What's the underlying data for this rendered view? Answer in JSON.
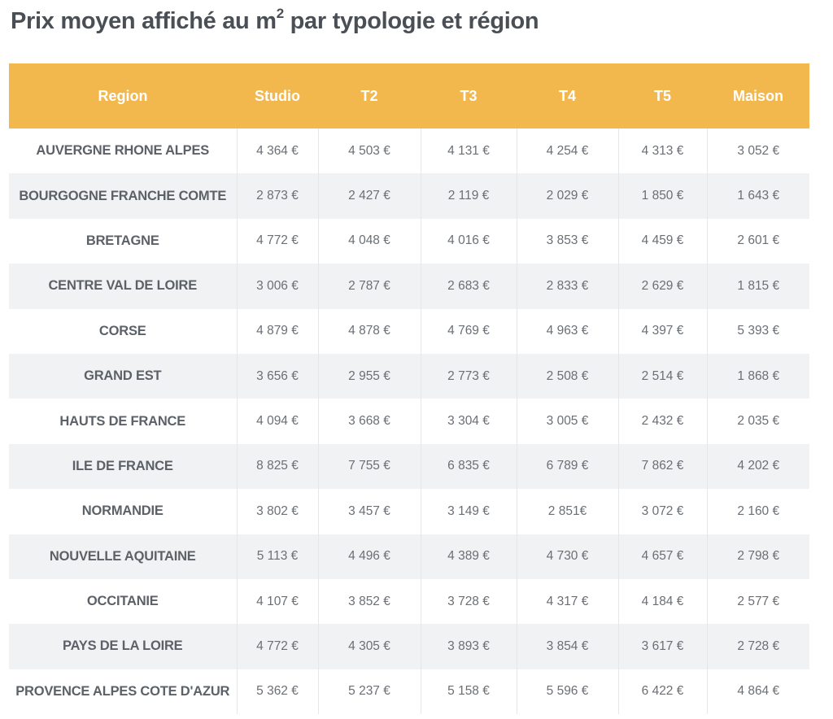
{
  "title": {
    "text": "Prix moyen affiché au m",
    "superscript": "2",
    "suffix": " par typologie et région"
  },
  "colors": {
    "header_background": "#f2b84e",
    "header_text": "#ffffff",
    "stripe": "#f1f2f3",
    "body_text": "#6a6f76",
    "title_text": "#4a4f56"
  },
  "table": {
    "headers": [
      "Region",
      "Studio",
      "T2",
      "T3",
      "T4",
      "T5",
      "Maison"
    ],
    "rows": [
      [
        "AUVERGNE RHONE ALPES",
        "4 364 €",
        "4 503 €",
        "4 131 €",
        "4 254 €",
        "4 313 €",
        "3 052 €"
      ],
      [
        "BOURGOGNE FRANCHE COMTE",
        "2 873 €",
        "2 427 €",
        "2 119 €",
        "2 029 €",
        "1 850 €",
        "1 643 €"
      ],
      [
        "BRETAGNE",
        "4 772 €",
        "4 048 €",
        "4 016 €",
        "3 853 €",
        "4 459 €",
        "2 601 €"
      ],
      [
        "CENTRE VAL DE LOIRE",
        "3 006 €",
        "2 787 €",
        "2 683 €",
        "2 833 €",
        "2 629 €",
        "1 815 €"
      ],
      [
        "CORSE",
        "4 879 €",
        "4 878 €",
        "4 769 €",
        "4 963 €",
        "4 397 €",
        "5 393 €"
      ],
      [
        "GRAND EST",
        "3 656 €",
        "2 955 €",
        "2 773 €",
        "2 508 €",
        "2 514 €",
        "1 868 €"
      ],
      [
        "HAUTS DE FRANCE",
        "4 094 €",
        "3 668 €",
        "3 304 €",
        "3 005 €",
        "2 432 €",
        "2 035 €"
      ],
      [
        "ILE DE FRANCE",
        "8 825 €",
        "7 755 €",
        "6 835 €",
        "6 789 €",
        "7 862 €",
        "4 202 €"
      ],
      [
        "NORMANDIE",
        "3 802 €",
        "3 457 €",
        "3 149 €",
        "2 851€",
        "3 072 €",
        "2 160 €"
      ],
      [
        "NOUVELLE AQUITAINE",
        "5 113 €",
        "4 496 €",
        "4 389 €",
        "4 730 €",
        "4 657 €",
        "2 798 €"
      ],
      [
        "OCCITANIE",
        "4 107 €",
        "3 852 €",
        "3 728 €",
        "4 317 €",
        "4 184 €",
        "2 577 €"
      ],
      [
        "PAYS DE LA LOIRE",
        "4 772 €",
        "4 305 €",
        "3 893 €",
        "3 854 €",
        "3 617 €",
        "2 728 €"
      ],
      [
        "PROVENCE ALPES COTE D'AZUR",
        "5 362 €",
        "5 237 €",
        "5 158 €",
        "5 596 €",
        "6 422 €",
        "4 864 €"
      ]
    ]
  }
}
